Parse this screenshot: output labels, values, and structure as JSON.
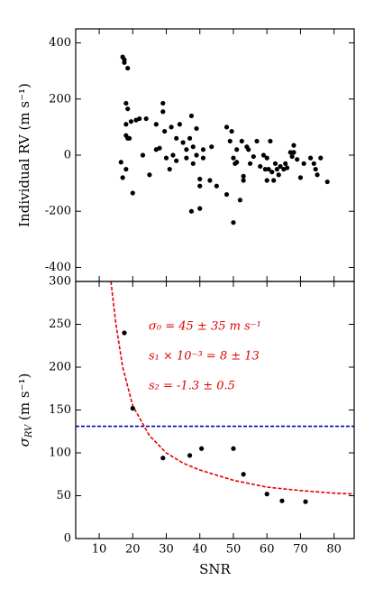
{
  "chart_data": [
    {
      "type": "scatter",
      "ylabel": "Individual RV (m s⁻¹)",
      "xlim": [
        3,
        86
      ],
      "xticks": [
        10,
        20,
        30,
        40,
        50,
        60,
        70,
        80
      ],
      "ylim": [
        -450,
        450
      ],
      "yticks": [
        -400,
        -200,
        0,
        200,
        400
      ],
      "series": [
        {
          "color": "#000000",
          "x": [
            17,
            17.5,
            17.5,
            18.5,
            18,
            18.5,
            18,
            18,
            18.5,
            19,
            16.5,
            17,
            18,
            20,
            19.5,
            21,
            22,
            24,
            23,
            25,
            27,
            27,
            28,
            29,
            29,
            29.5,
            30,
            31,
            31.5,
            32,
            33,
            33,
            34,
            35,
            36,
            36,
            37,
            37.5,
            37.5,
            38,
            38,
            39,
            39,
            40,
            40,
            40,
            41,
            41,
            43,
            43.5,
            45,
            48,
            48,
            49,
            49.5,
            50,
            50,
            50.5,
            51,
            51,
            52,
            52.5,
            53,
            53,
            54,
            54.5,
            55,
            56,
            57,
            59,
            59.5,
            60,
            60.5,
            61,
            61.5,
            62,
            62.5,
            63,
            63.5,
            64,
            65,
            65.5,
            66,
            67,
            67.5,
            68,
            68,
            69,
            70,
            71,
            73,
            74,
            74.5,
            75,
            76,
            78,
            58,
            60
          ],
          "values": [
            350,
            340,
            330,
            310,
            185,
            165,
            110,
            70,
            60,
            60,
            -25,
            -80,
            -50,
            -135,
            120,
            125,
            130,
            130,
            0,
            -70,
            110,
            20,
            25,
            185,
            155,
            85,
            -10,
            -50,
            100,
            0,
            60,
            -20,
            110,
            45,
            20,
            -10,
            60,
            140,
            -200,
            30,
            -30,
            95,
            0,
            -110,
            -85,
            -190,
            20,
            -10,
            -90,
            30,
            -110,
            100,
            -140,
            50,
            85,
            -10,
            -240,
            -30,
            20,
            -25,
            -160,
            50,
            -75,
            -90,
            30,
            20,
            -30,
            -5,
            50,
            0,
            -50,
            -10,
            -50,
            50,
            -60,
            -90,
            -30,
            -50,
            -70,
            -40,
            -50,
            -30,
            -45,
            10,
            -5,
            35,
            10,
            -15,
            -80,
            -30,
            -10,
            -30,
            -50,
            -70,
            -10,
            -95,
            -40,
            -90
          ]
        }
      ]
    },
    {
      "type": "scatter",
      "ylabel_parts": [
        "σ",
        "RV",
        " (m s⁻¹)"
      ],
      "xlabel": "SNR",
      "xlim": [
        3,
        86
      ],
      "xticks": [
        10,
        20,
        30,
        40,
        50,
        60,
        70,
        80
      ],
      "ylim": [
        0,
        300
      ],
      "yticks": [
        0,
        50,
        100,
        150,
        200,
        250,
        300
      ],
      "annotations": [
        "σ₀ = 45 ± 35 m s⁻¹",
        "s₁ × 10⁻³ = 8 ± 13",
        "s₂ = -1.3 ± 0.5"
      ],
      "hline": {
        "value": 131,
        "color": "#0000c8"
      },
      "fit": {
        "color": "#e00000",
        "x": [
          13.5,
          15,
          17,
          20,
          25,
          30,
          35,
          40,
          50,
          60,
          70,
          80,
          86
        ],
        "values": [
          300,
          250,
          200,
          155,
          120,
          100,
          88,
          80,
          68,
          60,
          56,
          53,
          52
        ]
      },
      "series": [
        {
          "color": "#000000",
          "x": [
            17.5,
            20,
            29,
            37,
            40.5,
            50,
            53,
            60,
            64.5,
            71.5
          ],
          "values": [
            240,
            152,
            94,
            97,
            105,
            105,
            75,
            52,
            44,
            43
          ]
        }
      ]
    }
  ]
}
